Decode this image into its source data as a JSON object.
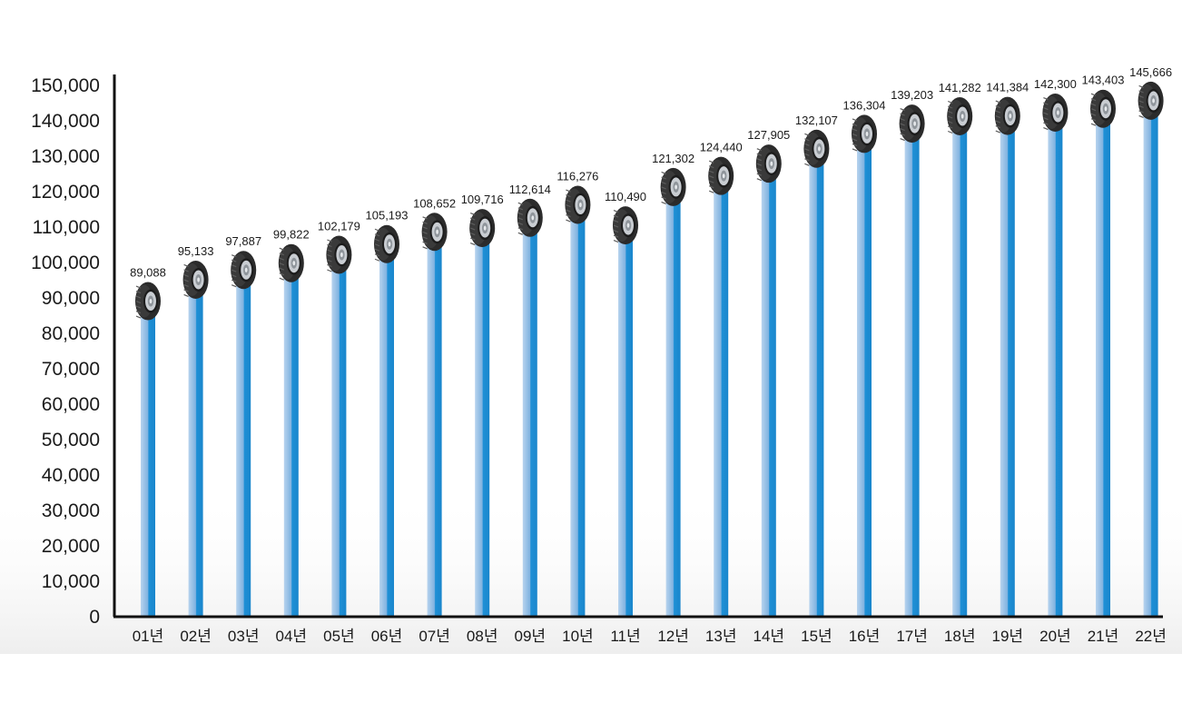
{
  "chart_data": {
    "type": "bar",
    "categories": [
      "01년",
      "02년",
      "03년",
      "04년",
      "05년",
      "06년",
      "07년",
      "08년",
      "09년",
      "10년",
      "11년",
      "12년",
      "13년",
      "14년",
      "15년",
      "16년",
      "17년",
      "18년",
      "19년",
      "20년",
      "21년",
      "22년"
    ],
    "values": [
      89088,
      95133,
      97887,
      99822,
      102179,
      105193,
      108652,
      109716,
      112614,
      116276,
      110490,
      121302,
      124440,
      127905,
      132107,
      136304,
      139203,
      141282,
      141384,
      142300,
      143403,
      145666
    ],
    "value_labels": [
      "89,088",
      "95,133",
      "97,887",
      "99,822",
      "102,179",
      "105,193",
      "108,652",
      "109,716",
      "112,614",
      "116,276",
      "110,490",
      "121,302",
      "124,440",
      "127,905",
      "132,107",
      "136,304",
      "139,203",
      "141,282",
      "141,384",
      "142,300",
      "143,403",
      "145,666"
    ],
    "y_ticks": [
      "0",
      "10,000",
      "20,000",
      "30,000",
      "40,000",
      "50,000",
      "60,000",
      "70,000",
      "80,000",
      "90,000",
      "100,000",
      "110,000",
      "120,000",
      "130,000",
      "140,000",
      "150,000"
    ],
    "ylim": [
      0,
      150000
    ],
    "grid": false,
    "bar_marker": "tire-icon",
    "colors": {
      "bar_light": "#a9c9ea",
      "bar_dark": "#1f90d6",
      "axis": "#111111",
      "tire": "#2b2b2b",
      "rim": "#c9cdd2"
    }
  }
}
